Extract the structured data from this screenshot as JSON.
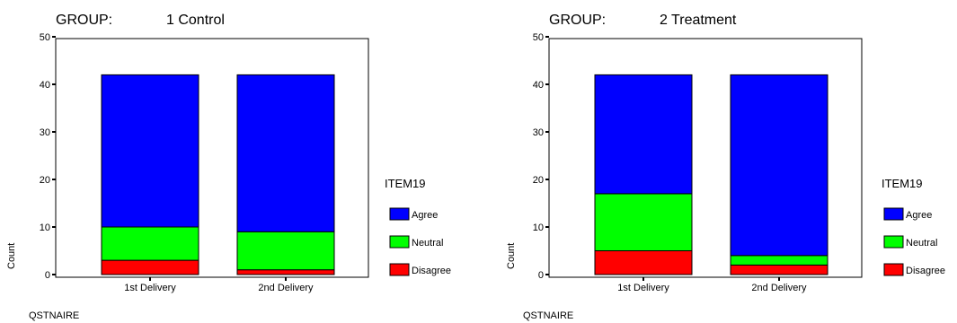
{
  "chart_data": [
    {
      "type": "bar",
      "stacked": true,
      "title_prefix": "GROUP:",
      "title": "1  Control",
      "xlabel": "QSTNAIRE",
      "ylabel": "Count",
      "categories": [
        "1st Delivery",
        "2nd Delivery"
      ],
      "ylim": [
        0,
        50
      ],
      "yticks": [
        0,
        10,
        20,
        30,
        40,
        50
      ],
      "legend_title": "ITEM19",
      "series": [
        {
          "name": "Disagree",
          "color": "#ff0000",
          "values": [
            3,
            1
          ]
        },
        {
          "name": "Neutral",
          "color": "#00ff00",
          "values": [
            7,
            8
          ]
        },
        {
          "name": "Agree",
          "color": "#0000ff",
          "values": [
            32,
            33
          ]
        }
      ]
    },
    {
      "type": "bar",
      "stacked": true,
      "title_prefix": "GROUP:",
      "title": "2  Treatment",
      "xlabel": "QSTNAIRE",
      "ylabel": "Count",
      "categories": [
        "1st Delivery",
        "2nd Delivery"
      ],
      "ylim": [
        0,
        50
      ],
      "yticks": [
        0,
        10,
        20,
        30,
        40,
        50
      ],
      "legend_title": "ITEM19",
      "series": [
        {
          "name": "Disagree",
          "color": "#ff0000",
          "values": [
            5,
            2
          ]
        },
        {
          "name": "Neutral",
          "color": "#00ff00",
          "values": [
            12,
            2
          ]
        },
        {
          "name": "Agree",
          "color": "#0000ff",
          "values": [
            25,
            38
          ]
        }
      ]
    }
  ]
}
